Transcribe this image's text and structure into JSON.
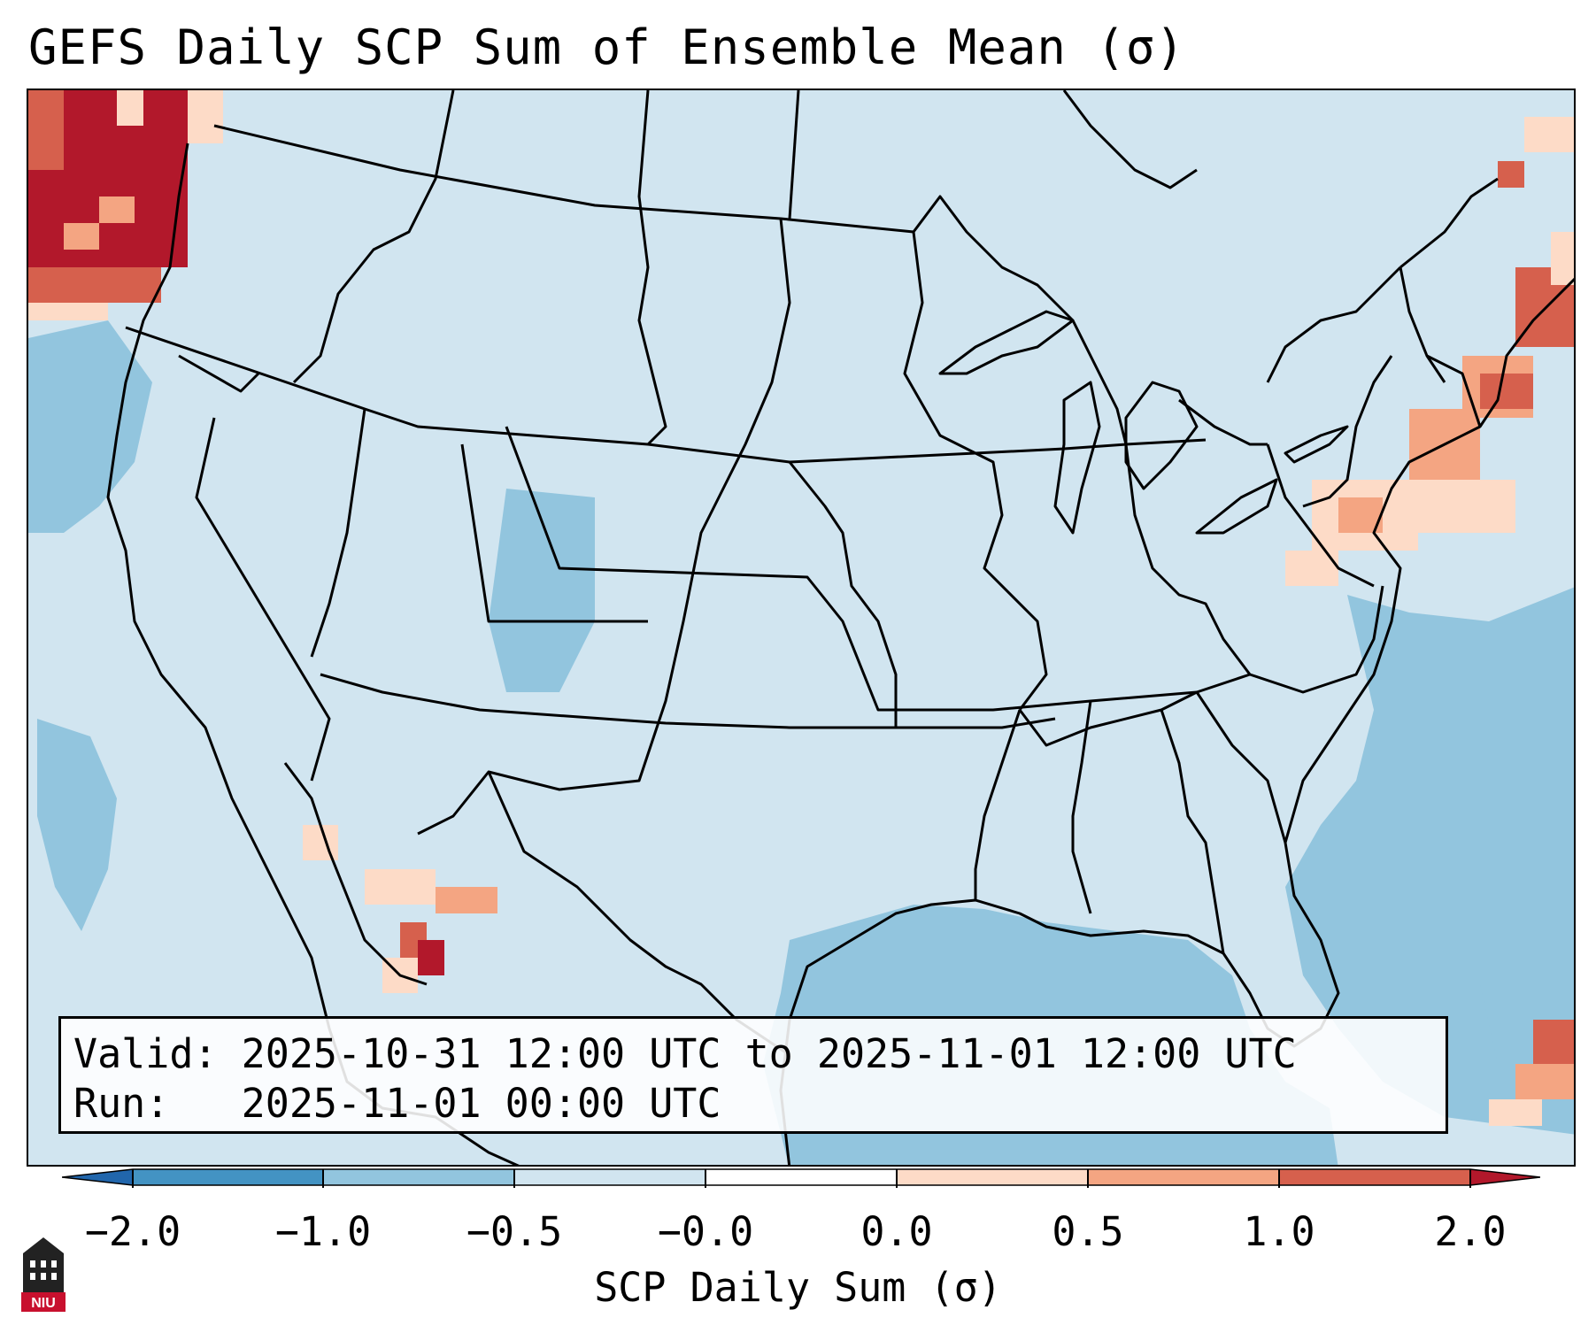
{
  "title": "GEFS Daily SCP Sum of Ensemble Mean (σ)",
  "valid_line": "Valid: 2025-10-31 12:00 UTC to 2025-11-01 12:00 UTC",
  "run_line": "Run:   2025-11-01 00:00 UTC",
  "colorbar": {
    "label": "SCP Daily Sum (σ)",
    "ticks": [
      "−2.0",
      "−1.0",
      "−0.5",
      "−0.0",
      "0.0",
      "0.5",
      "1.0",
      "2.0"
    ],
    "colors": [
      "#2166ac",
      "#4393c3",
      "#92c5de",
      "#d1e5f0",
      "#fddbc7",
      "#f4a582",
      "#d6604d",
      "#b2182b"
    ]
  },
  "logo": {
    "text": "NIU",
    "color": "#c8102e"
  },
  "colors": {
    "ocean_shade": "#92c5de",
    "land_base": "#d1e5f0",
    "border": "#000000"
  }
}
